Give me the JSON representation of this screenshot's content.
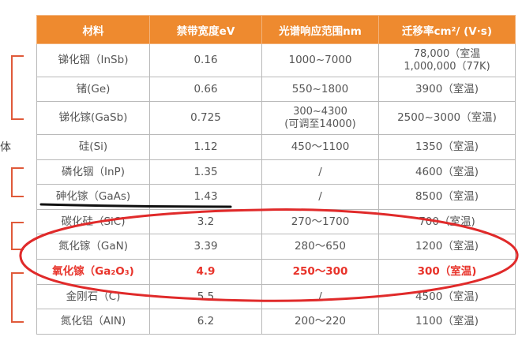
{
  "side_label": "体",
  "table": {
    "headers": [
      "材料",
      "禁带宽度eV",
      "光谱响应范围nm",
      "迁移率cm²/ (V·s)"
    ],
    "rows": [
      {
        "material": "锑化铟（InSb)",
        "bandgap": "0.16",
        "spectrum": "1000~7000",
        "mobility": [
          "78,000（室温",
          "1,000,000（77K)"
        ]
      },
      {
        "material": "锗(Ge)",
        "bandgap": "0.66",
        "spectrum": "550~1800",
        "mobility": [
          "3900（室温)"
        ]
      },
      {
        "material": "锑化镓(GaSb)",
        "bandgap": "0.725",
        "spectrum": [
          "300~4300",
          "(可调至14000)"
        ],
        "mobility": [
          "2500~3000（室温)"
        ]
      },
      {
        "material": "硅(Si)",
        "bandgap": "1.12",
        "spectrum": "450～1100",
        "mobility": [
          "1350（室温)"
        ]
      },
      {
        "material": "磷化铟（InP)",
        "bandgap": "1.35",
        "spectrum": "/",
        "mobility": [
          "4600（室温)"
        ]
      },
      {
        "material": "砷化镓（GaAs)",
        "bandgap": "1.43",
        "spectrum": "/",
        "mobility": [
          "8500（室温)"
        ]
      },
      {
        "material": "碳化硅（SiC)",
        "bandgap": "3.2",
        "spectrum": "270～1700",
        "mobility": [
          "700（室温)"
        ]
      },
      {
        "material": "氮化镓（GaN)",
        "bandgap": "3.39",
        "spectrum": "280～650",
        "mobility": [
          "1200（室温)"
        ]
      },
      {
        "material": "氧化镓（Ga₂O₃)",
        "bandgap": "4.9",
        "spectrum": "250～300",
        "mobility": [
          "300（室温)"
        ]
      },
      {
        "material": "金刚石（C)",
        "bandgap": "5.5",
        "spectrum": "/",
        "mobility": [
          "4500（室温)"
        ]
      },
      {
        "material": "氮化铝（AIN)",
        "bandgap": "6.2",
        "spectrum": "200～220",
        "mobility": [
          "1100（室温)"
        ]
      }
    ]
  },
  "colors": {
    "header_bg": "#ee8a2f",
    "annotation_red": "#e02a2a",
    "highlight_text": "#e8332a",
    "bracket": "#e05a3a"
  }
}
